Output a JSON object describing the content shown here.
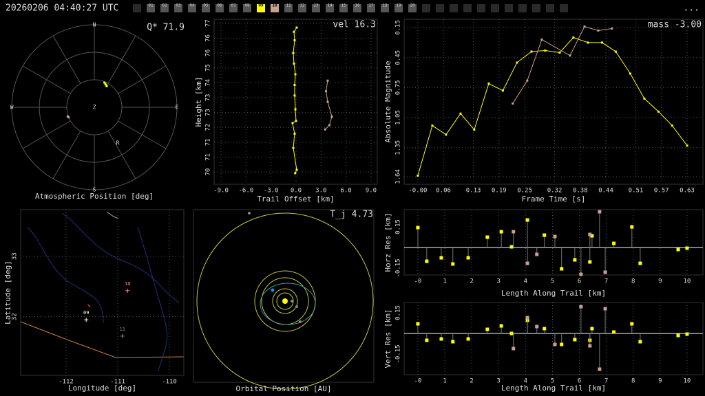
{
  "header": {
    "timestamp": "20260206 04:40:27 UTC",
    "menu": "...",
    "cameras": [
      {
        "label": "01",
        "color": "#555555"
      },
      {
        "label": "02",
        "color": "#555555"
      },
      {
        "label": "03",
        "color": "#555555"
      },
      {
        "label": "04",
        "color": "#555555"
      },
      {
        "label": "05",
        "color": "#555555"
      },
      {
        "label": "06",
        "color": "#555555"
      },
      {
        "label": "07",
        "color": "#555555"
      },
      {
        "label": "08",
        "color": "#555555"
      },
      {
        "label": "09",
        "color": "#ffff00"
      },
      {
        "label": "10",
        "color": "#c8a090"
      },
      {
        "label": "11",
        "color": "#555555"
      },
      {
        "label": "12",
        "color": "#555555"
      },
      {
        "label": "13",
        "color": "#555555"
      },
      {
        "label": "14",
        "color": "#555555"
      },
      {
        "label": "15",
        "color": "#555555"
      },
      {
        "label": "16",
        "color": "#555555"
      },
      {
        "label": "17",
        "color": "#555555"
      },
      {
        "label": "18",
        "color": "#555555"
      },
      {
        "label": "19",
        "color": "#555555"
      },
      {
        "label": "20",
        "color": "#555555"
      }
    ]
  },
  "chart_data": [
    {
      "type": "polar",
      "xlabel": "Atmospheric Position [deg]",
      "annotation": "Q* 71.9",
      "compass": [
        "N",
        "E",
        "S",
        "W",
        "Z",
        "R"
      ],
      "xlim": [
        -90,
        90
      ],
      "ylim": [
        -90,
        90
      ],
      "series": [
        {
          "color": "#ffff00",
          "x": [
            11,
            12,
            13,
            13.5
          ],
          "values": [
            27,
            25.5,
            24,
            23
          ]
        },
        {
          "color": "#c8a090",
          "x": [
            -29,
            -28
          ],
          "values": [
            -10,
            -11
          ]
        }
      ]
    },
    {
      "type": "line",
      "xlabel": "Trail Offset [km]",
      "ylabel": "Height [km]",
      "annotation": "vel 16.3",
      "grid": true,
      "xlim": [
        -9.83,
        9.75
      ],
      "ylim": [
        69.42,
        77.19
      ],
      "xticks": [
        {
          "value": -9,
          "label": "-9.0"
        },
        {
          "value": -6,
          "label": "-6.0"
        },
        {
          "value": -3,
          "label": "-3.0"
        },
        {
          "value": 0,
          "label": "0.0"
        },
        {
          "value": 3,
          "label": "3.0"
        },
        {
          "value": 6,
          "label": "6.0"
        },
        {
          "value": 9,
          "label": "9.0"
        }
      ],
      "yticks": [
        {
          "value": 70.0,
          "label": "70"
        },
        {
          "value": 70.7,
          "label": "71"
        },
        {
          "value": 71.4,
          "label": "71"
        },
        {
          "value": 72.1,
          "label": "72"
        },
        {
          "value": 72.8,
          "label": "73"
        },
        {
          "value": 73.5,
          "label": "73"
        },
        {
          "value": 74.2,
          "label": "74"
        },
        {
          "value": 74.9,
          "label": "75"
        },
        {
          "value": 75.6,
          "label": "76"
        },
        {
          "value": 76.3,
          "label": "76"
        },
        {
          "value": 77.0,
          "label": "77"
        }
      ],
      "series": [
        {
          "color": "#ffff00",
          "x": [
            -0.1,
            0.08,
            -0.33,
            -0.17,
            -0.42,
            0,
            -0.08,
            -0.17,
            -0.17,
            -0.08,
            -0.25,
            -0.33,
            -0.17,
            -0.25,
            0.08
          ],
          "values": [
            69.94,
            70.1,
            71.13,
            71.8,
            72.3,
            72.4,
            72.95,
            73.6,
            74.1,
            74.6,
            75.1,
            75.6,
            76.2,
            76.6,
            76.8
          ]
        },
        {
          "color": "#c8a090",
          "x": [
            3.5,
            4,
            4.3,
            3.8,
            3.6,
            3.8
          ],
          "values": [
            72.0,
            72.2,
            72.6,
            73.3,
            73.8,
            74.3
          ]
        }
      ]
    },
    {
      "type": "line",
      "xlabel": "Frame Time [s]",
      "ylabel": "Absolute Magnitude",
      "annotation": "mass -3.00",
      "grid": true,
      "xlim": [
        -0.032,
        0.667
      ],
      "ylim": [
        1.716,
        0.067
      ],
      "xticks": [
        {
          "value": 0,
          "label": "-0.00"
        },
        0.06,
        0.13,
        0.19,
        0.25,
        0.32,
        0.38,
        0.44,
        0.51,
        0.57,
        0.63
      ],
      "yticks": [
        0.15,
        0.45,
        0.75,
        1.05,
        1.35,
        1.64
      ],
      "series": [
        {
          "color": "#ffff00",
          "x": [
            0,
            0.034,
            0.066,
            0.1,
            0.132,
            0.166,
            0.199,
            0.232,
            0.266,
            0.298,
            0.332,
            0.364,
            0.398,
            0.431,
            0.463,
            0.497,
            0.53,
            0.563,
            0.595,
            0.63
          ],
          "values": [
            1.63,
            1.13,
            1.22,
            1.01,
            1.17,
            0.71,
            0.78,
            0.5,
            0.39,
            0.38,
            0.4,
            0.25,
            0.3,
            0.3,
            0.39,
            0.61,
            0.86,
            0.99,
            1.13,
            1.33
          ]
        },
        {
          "color": "#c8a090",
          "x": [
            0.222,
            0.256,
            0.29,
            0.356,
            0.39,
            0.422,
            0.454
          ],
          "values": [
            0.91,
            0.68,
            0.27,
            0.43,
            0.14,
            0.18,
            0.16
          ]
        }
      ]
    },
    {
      "type": "scatter",
      "xlabel": "Longitude [deg]",
      "ylabel": "Latitude [deg]",
      "grid": true,
      "xlim": [
        -112.88,
        -109.72
      ],
      "ylim": [
        31.03,
        33.77
      ],
      "xticks": [
        -112,
        -111,
        -110
      ],
      "yticks": [
        32,
        33
      ],
      "series": [
        {
          "name": "09",
          "color": "#ffffcc",
          "x": [
            -111.61
          ],
          "values": [
            31.95
          ]
        },
        {
          "name": "10",
          "color": "#ff9060",
          "x": [
            -110.81
          ],
          "values": [
            32.43
          ]
        },
        {
          "name": "11",
          "color": "#888888",
          "x": [
            -110.91
          ],
          "values": [
            31.68
          ]
        },
        {
          "color": "#d04030",
          "x": [
            -111.58,
            -111.53
          ],
          "values": [
            32.2,
            32.16
          ]
        }
      ]
    },
    {
      "type": "orbit",
      "xlabel": "Orbital Position [AU]",
      "annotation": "T_j 4.73"
    },
    {
      "type": "stem",
      "xlabel": "Length Along Trail [km]",
      "ylabel": "Horz Res [km]",
      "grid": true,
      "xlim": [
        -0.51,
        10.59
      ],
      "ylim": [
        -0.2,
        0.275
      ],
      "xticks": [
        {
          "value": 0,
          "label": "-0"
        },
        1,
        2,
        3,
        4,
        5,
        6,
        7,
        8,
        9,
        10
      ],
      "yticks": [
        {
          "value": 0.15,
          "label": "0.15"
        },
        {
          "value": -0.15,
          "label": "-0.15"
        }
      ],
      "series": [
        {
          "color": "#ffff00",
          "x": [
            0,
            0.33,
            0.87,
            1.3,
            1.87,
            2.58,
            3.1,
            3.48,
            4.07,
            4.7,
            5.34,
            5.83,
            6.39,
            6.47,
            7.28,
            7.95,
            8.26,
            9.67,
            10
          ],
          "values": [
            0.145,
            -0.1,
            -0.075,
            -0.12,
            -0.075,
            0.075,
            0.115,
            0.005,
            0.2,
            0.09,
            -0.155,
            -0.09,
            -0.105,
            0.085,
            0.03,
            0.15,
            -0.115,
            -0.015,
            -0.005
          ]
        },
        {
          "color": "#c8a090",
          "x": [
            3.55,
            4.07,
            4.42,
            5.09,
            6.06,
            6.39,
            6.75,
            6.96
          ],
          "values": [
            0.115,
            -0.115,
            -0.05,
            0.08,
            -0.195,
            0.095,
            0.26,
            -0.18
          ]
        }
      ]
    },
    {
      "type": "stem",
      "xlabel": "Length Along Trail [km]",
      "ylabel": "Vert Res [km]",
      "grid": true,
      "xlim": [
        -0.51,
        10.59
      ],
      "ylim": [
        -0.3,
        0.225
      ],
      "xticks": [
        {
          "value": 0,
          "label": "-0"
        },
        1,
        2,
        3,
        4,
        5,
        6,
        7,
        8,
        9,
        10
      ],
      "yticks": [
        {
          "value": 0.15,
          "label": "0.15"
        },
        {
          "value": -0.15,
          "label": "-0.15"
        }
      ],
      "series": [
        {
          "color": "#ffff00",
          "x": [
            0,
            0.33,
            0.87,
            1.3,
            1.87,
            2.58,
            3.1,
            3.48,
            4.07,
            4.7,
            5.34,
            5.83,
            6.39,
            6.47,
            7.28,
            7.95,
            8.26,
            9.67,
            10
          ],
          "values": [
            0.07,
            -0.05,
            -0.04,
            -0.06,
            -0.04,
            0.03,
            0.055,
            0,
            0.095,
            0.035,
            -0.08,
            -0.045,
            -0.05,
            0.035,
            0.01,
            0.07,
            -0.06,
            -0.015,
            -0.005
          ]
        },
        {
          "color": "#c8a090",
          "x": [
            3.55,
            4.07,
            4.42,
            5.09,
            6.06,
            6.39,
            6.75,
            6.96
          ],
          "values": [
            -0.11,
            0.115,
            0.05,
            -0.08,
            0.195,
            -0.09,
            -0.26,
            0.18
          ]
        }
      ]
    }
  ]
}
